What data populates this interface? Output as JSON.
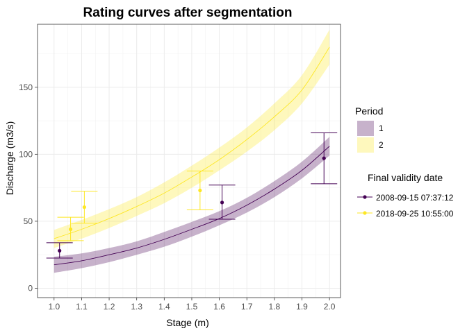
{
  "chart_data": {
    "type": "line",
    "title": "Rating curves after segmentation",
    "xlabel": "Stage (m)",
    "ylabel": "Discharge (m3/s)",
    "xlim": [
      0.94,
      2.04
    ],
    "ylim": [
      -7,
      197
    ],
    "x_ticks": [
      1.0,
      1.1,
      1.2,
      1.3,
      1.4,
      1.5,
      1.6,
      1.7,
      1.8,
      1.9,
      2.0
    ],
    "y_ticks": [
      0,
      50,
      100,
      150
    ],
    "grid": true,
    "legend_position": "right",
    "period_legend": {
      "title": "Period",
      "items": [
        {
          "label": "1",
          "color": "#440154"
        },
        {
          "label": "2",
          "color": "#FDE725"
        }
      ]
    },
    "date_legend": {
      "title": "Final validity date",
      "items": [
        {
          "label": "2008-09-15 07:37:12",
          "color": "#440154"
        },
        {
          "label": "2018-09-25 10:55:00",
          "color": "#FDE725"
        }
      ]
    },
    "curves": [
      {
        "color": "#440154",
        "median": [
          [
            1.0,
            17.5
          ],
          [
            1.1,
            20.5
          ],
          [
            1.2,
            25
          ],
          [
            1.3,
            30
          ],
          [
            1.4,
            36.5
          ],
          [
            1.5,
            44
          ],
          [
            1.6,
            52
          ],
          [
            1.7,
            62
          ],
          [
            1.8,
            74
          ],
          [
            1.9,
            88
          ],
          [
            2.0,
            106
          ]
        ],
        "lower": [
          [
            1.0,
            11.5
          ],
          [
            1.1,
            15
          ],
          [
            1.2,
            19.5
          ],
          [
            1.3,
            25
          ],
          [
            1.4,
            31
          ],
          [
            1.5,
            38.5
          ],
          [
            1.6,
            47
          ],
          [
            1.7,
            56.5
          ],
          [
            1.8,
            68
          ],
          [
            1.9,
            82
          ],
          [
            2.0,
            99
          ]
        ],
        "upper": [
          [
            1.0,
            23.5
          ],
          [
            1.1,
            26
          ],
          [
            1.2,
            30
          ],
          [
            1.3,
            35
          ],
          [
            1.4,
            42
          ],
          [
            1.5,
            49.5
          ],
          [
            1.6,
            57.5
          ],
          [
            1.7,
            67.5
          ],
          [
            1.8,
            80
          ],
          [
            1.9,
            94.5
          ],
          [
            2.0,
            113
          ]
        ]
      },
      {
        "color": "#FDE725",
        "median": [
          [
            1.0,
            37
          ],
          [
            1.1,
            44
          ],
          [
            1.2,
            52
          ],
          [
            1.3,
            61
          ],
          [
            1.4,
            71
          ],
          [
            1.5,
            83
          ],
          [
            1.6,
            96
          ],
          [
            1.7,
            111
          ],
          [
            1.8,
            128
          ],
          [
            1.9,
            148
          ],
          [
            2.0,
            180
          ]
        ],
        "lower": [
          [
            1.0,
            30
          ],
          [
            1.1,
            37
          ],
          [
            1.2,
            45
          ],
          [
            1.3,
            54
          ],
          [
            1.4,
            63.5
          ],
          [
            1.5,
            75
          ],
          [
            1.6,
            88
          ],
          [
            1.7,
            102
          ],
          [
            1.8,
            118
          ],
          [
            1.9,
            138
          ],
          [
            2.0,
            167
          ]
        ],
        "upper": [
          [
            1.0,
            43.5
          ],
          [
            1.1,
            51
          ],
          [
            1.2,
            59
          ],
          [
            1.3,
            68
          ],
          [
            1.4,
            79
          ],
          [
            1.5,
            91.5
          ],
          [
            1.6,
            105
          ],
          [
            1.7,
            120
          ],
          [
            1.8,
            138
          ],
          [
            1.9,
            159
          ],
          [
            2.0,
            193
          ]
        ]
      }
    ],
    "gaugings": [
      {
        "x": 1.02,
        "y": 28,
        "ymin": 22.5,
        "ymax": 34,
        "color": "#440154"
      },
      {
        "x": 1.61,
        "y": 64,
        "ymin": 51.5,
        "ymax": 77,
        "color": "#440154"
      },
      {
        "x": 1.98,
        "y": 97,
        "ymin": 78,
        "ymax": 116,
        "color": "#440154"
      },
      {
        "x": 1.06,
        "y": 44,
        "ymin": 35.5,
        "ymax": 53,
        "color": "#FDE725"
      },
      {
        "x": 1.11,
        "y": 60.5,
        "ymin": 48.5,
        "ymax": 72.5,
        "color": "#FDE725"
      },
      {
        "x": 1.53,
        "y": 73,
        "ymin": 58.5,
        "ymax": 87.5,
        "color": "#FDE725"
      }
    ]
  }
}
